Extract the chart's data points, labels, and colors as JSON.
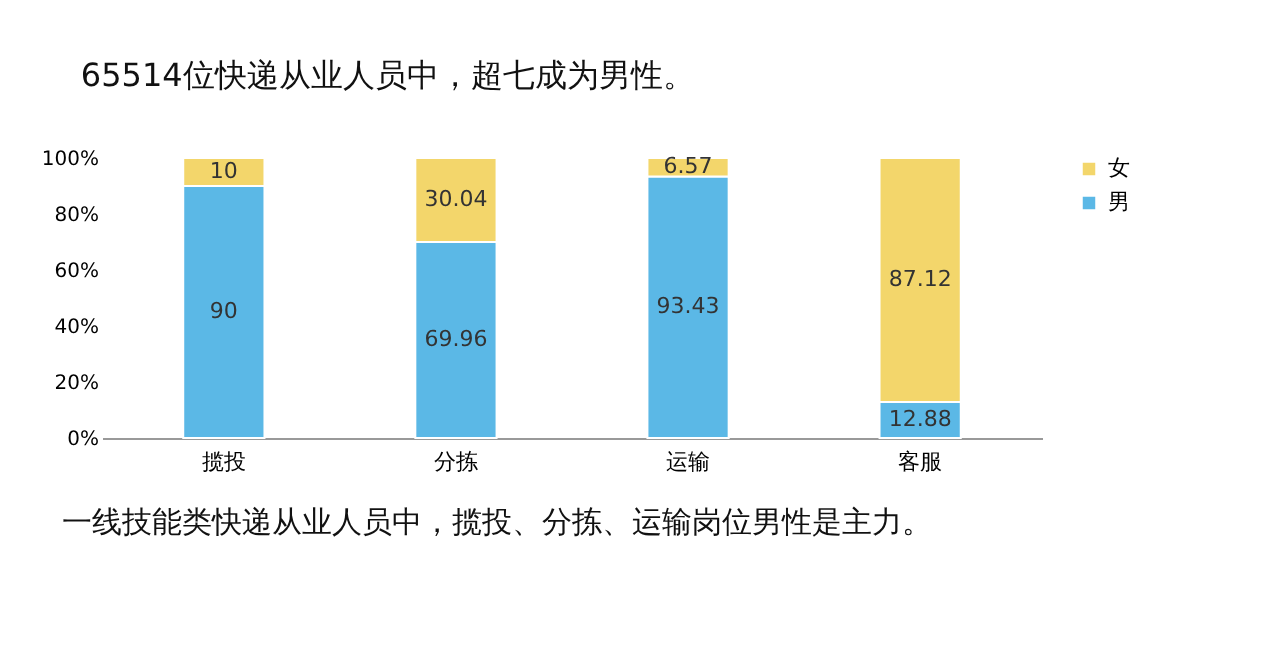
{
  "chart_data": {
    "type": "bar",
    "stacked": true,
    "title": "65514位快递从业人员中，超七成为男性。",
    "categories": [
      "揽投",
      "分拣",
      "运输",
      "客服"
    ],
    "series": [
      {
        "name": "男",
        "color": "#5bb8e6",
        "values": [
          90,
          69.96,
          93.43,
          12.88
        ]
      },
      {
        "name": "女",
        "color": "#f3d66b",
        "values": [
          10,
          30.04,
          6.57,
          87.12
        ]
      }
    ],
    "ylim": [
      0,
      100
    ],
    "yticks": [
      {
        "value": 0,
        "label": "0%"
      },
      {
        "value": 20,
        "label": "20%"
      },
      {
        "value": 40,
        "label": "40%"
      },
      {
        "value": 60,
        "label": "60%"
      },
      {
        "value": 80,
        "label": "80%"
      },
      {
        "value": 100,
        "label": "100%"
      }
    ],
    "data_labels": true,
    "legend": "right",
    "grid": false,
    "annotations": [
      "一线技能类快递从业人员中，揽投、分拣、运输岗位男性是主力。"
    ]
  }
}
